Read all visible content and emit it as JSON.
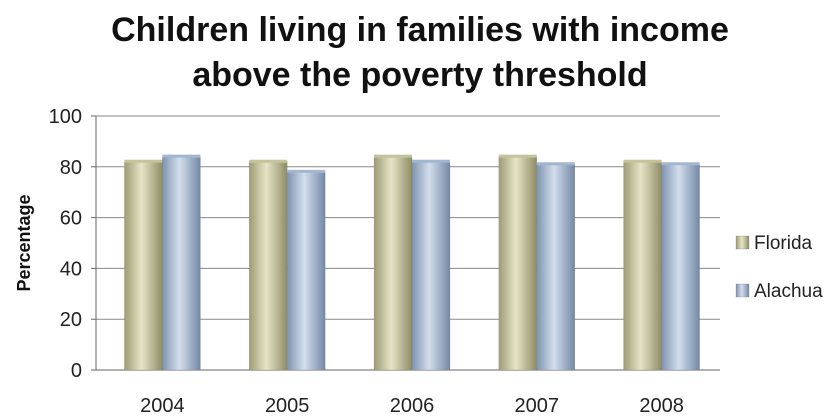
{
  "chart_data": {
    "type": "bar",
    "title_lines": [
      "Children living in families with income",
      "above the poverty threshold"
    ],
    "xlabel": "",
    "ylabel": "Percentage",
    "ylim": [
      0,
      100
    ],
    "yticks": [
      0,
      20,
      40,
      60,
      80,
      100
    ],
    "categories": [
      "2004",
      "2005",
      "2006",
      "2007",
      "2008"
    ],
    "series": [
      {
        "name": "Florida",
        "values": [
          82,
          82,
          84,
          84,
          82
        ],
        "color": "#c4c39c"
      },
      {
        "name": "Alachua",
        "values": [
          84,
          78,
          82,
          81,
          81
        ],
        "color": "#a3b6cf"
      }
    ],
    "grid": true,
    "legend_position": "right"
  }
}
